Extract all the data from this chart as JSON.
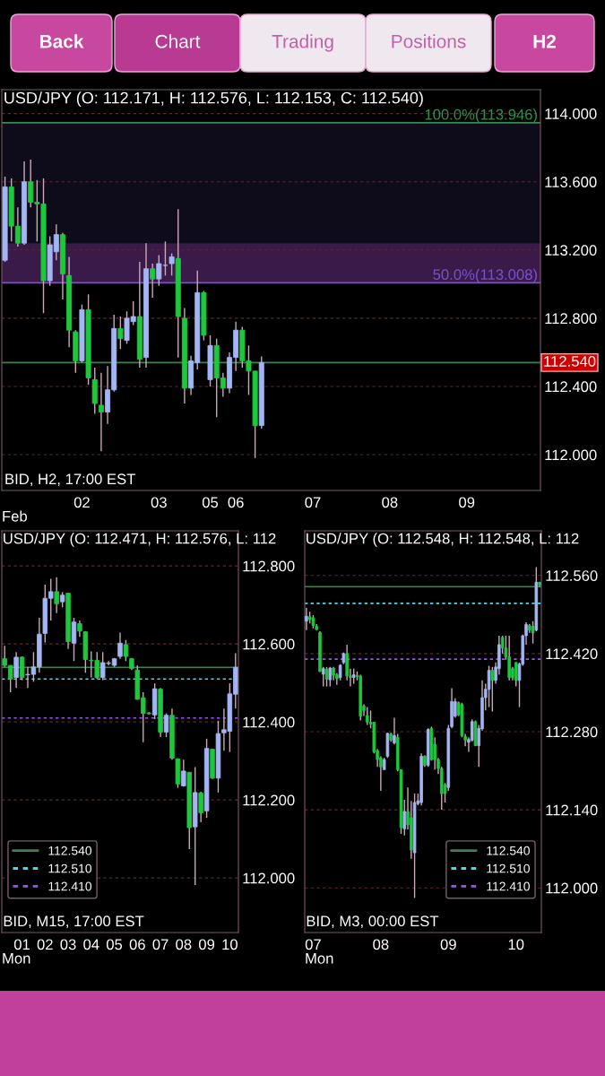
{
  "chart_data": [
    {
      "type": "other",
      "annotations": [
        "Back",
        "Chart",
        "Trading",
        "Positions",
        "H2"
      ]
    },
    {
      "type": "candlestick",
      "title": "USD/JPY (O: 112.171, H: 112.576, L: 112.153, C: 112.540)",
      "xlabel": "Feb",
      "categories": [
        null,
        null,
        null,
        null,
        null,
        null,
        null,
        null,
        null,
        null,
        null,
        null,
        "02",
        null,
        null,
        null,
        null,
        null,
        null,
        null,
        null,
        null,
        null,
        null,
        "03",
        null,
        null,
        null,
        null,
        null,
        null,
        null,
        "05",
        null,
        null,
        null,
        "06",
        null,
        null,
        null,
        null,
        null,
        null,
        null,
        null,
        null,
        null,
        null,
        "07",
        null,
        null,
        null,
        null,
        null,
        null,
        null,
        null,
        null,
        null,
        null,
        "08",
        null,
        null,
        null,
        null,
        null,
        null,
        null,
        null,
        null,
        null,
        null,
        "09",
        null,
        null,
        null,
        null,
        null,
        null,
        null,
        null,
        null,
        null,
        null
      ],
      "ohlc": [
        [
          113.14,
          113.63,
          113.13,
          113.57
        ],
        [
          113.57,
          113.62,
          113.25,
          113.34
        ],
        [
          113.34,
          113.45,
          113.22,
          113.24
        ],
        [
          113.24,
          113.72,
          113.23,
          113.6
        ],
        [
          113.6,
          113.73,
          113.45,
          113.48
        ],
        [
          113.48,
          113.61,
          113.25,
          113.47
        ],
        [
          113.47,
          113.62,
          112.83,
          113.02
        ],
        [
          113.02,
          113.28,
          112.99,
          113.23
        ],
        [
          113.19,
          113.35,
          113.14,
          113.29
        ],
        [
          113.29,
          113.3,
          112.91,
          113.06
        ],
        [
          113.05,
          113.16,
          112.63,
          112.73
        ],
        [
          112.72,
          112.73,
          112.48,
          112.55
        ],
        [
          112.55,
          112.88,
          112.54,
          112.85
        ],
        [
          112.85,
          112.94,
          112.41,
          112.45
        ],
        [
          112.44,
          112.51,
          112.24,
          112.3
        ],
        [
          112.29,
          112.48,
          112.02,
          112.25
        ],
        [
          112.25,
          112.52,
          112.18,
          112.38
        ],
        [
          112.38,
          112.82,
          112.37,
          112.74
        ],
        [
          112.74,
          112.81,
          112.62,
          112.68
        ],
        [
          112.67,
          112.84,
          112.65,
          112.8
        ],
        [
          112.78,
          112.9,
          112.76,
          112.81
        ],
        [
          112.81,
          113.13,
          112.51,
          112.56
        ],
        [
          112.57,
          113.24,
          112.51,
          113.09
        ],
        [
          113.09,
          113.12,
          112.92,
          113.03
        ],
        [
          113.03,
          113.17,
          112.99,
          113.12
        ],
        [
          113.11,
          113.25,
          113.05,
          113.11
        ],
        [
          113.12,
          113.18,
          113.05,
          113.16
        ],
        [
          113.15,
          113.44,
          112.57,
          112.81
        ],
        [
          112.8,
          112.86,
          112.3,
          112.39
        ],
        [
          112.39,
          112.58,
          112.35,
          112.55
        ],
        [
          112.54,
          113.08,
          112.5,
          112.95
        ],
        [
          112.95,
          112.96,
          112.67,
          112.7
        ],
        [
          112.44,
          112.7,
          112.4,
          112.64
        ],
        [
          112.64,
          112.68,
          112.22,
          112.45
        ],
        [
          112.45,
          112.48,
          112.34,
          112.39
        ],
        [
          112.39,
          112.6,
          112.36,
          112.57
        ],
        [
          112.57,
          112.78,
          112.49,
          112.73
        ],
        [
          112.73,
          112.75,
          112.51,
          112.55
        ],
        [
          112.55,
          112.64,
          112.35,
          112.49
        ],
        [
          112.49,
          112.49,
          111.98,
          112.17
        ],
        [
          112.171,
          112.576,
          112.153,
          112.54
        ],
        null,
        null,
        null,
        null,
        null,
        null,
        null,
        null,
        null,
        null,
        null,
        null,
        null,
        null,
        null,
        null,
        null,
        null,
        null,
        null,
        null,
        null,
        null,
        null,
        null,
        null,
        null,
        null,
        null,
        null,
        null,
        null,
        null,
        null,
        null,
        null,
        null,
        null,
        null,
        null,
        null,
        null,
        null
      ],
      "colors": [
        "#a3b5f2",
        "#1ec83c",
        "#1ec83c",
        "#a3b5f2",
        "#1ec83c",
        "#1ec83c",
        "#1ec83c",
        "#a3b5f2",
        "#a3b5f2",
        "#1ec83c",
        "#1ec83c",
        "#1ec83c",
        "#a3b5f2",
        "#1ec83c",
        "#1ec83c",
        "#1ec83c",
        "#a3b5f2",
        "#a3b5f2",
        "#1ec83c",
        "#a3b5f2",
        "#a3b5f2",
        "#1ec83c",
        "#a3b5f2",
        "#1ec83c",
        "#a3b5f2",
        "#a3b5f2",
        "#a3b5f2",
        "#1ec83c",
        "#1ec83c",
        "#a3b5f2",
        "#a3b5f2",
        "#1ec83c",
        "#a3b5f2",
        "#1ec83c",
        "#1ec83c",
        "#a3b5f2",
        "#a3b5f2",
        "#1ec83c",
        "#1ec83c",
        "#1ec83c",
        "#a3b5f2",
        null,
        null,
        null,
        null,
        null,
        null,
        null,
        null,
        null,
        null,
        null,
        null,
        null,
        null,
        null,
        null,
        null,
        null,
        null,
        null,
        null,
        null,
        null,
        null,
        null,
        null,
        null,
        null,
        null,
        null,
        null,
        null,
        null,
        null,
        null,
        null,
        null,
        null,
        null,
        null,
        null,
        null,
        null
      ],
      "ylim": [
        111.79,
        114.14
      ],
      "yticks": [
        {
          "value": 112,
          "label": "112.000"
        },
        {
          "value": 112.4,
          "label": "112.400"
        },
        {
          "value": 112.8,
          "label": "112.800"
        },
        {
          "value": 113.2,
          "label": "113.200"
        },
        {
          "value": 113.6,
          "label": "113.600"
        },
        {
          "value": 114,
          "label": "114.000"
        }
      ],
      "grid": "y",
      "bands": [
        {
          "axis": "y",
          "from": 113.24,
          "to": 113.946,
          "color": "#0e0c1a"
        },
        {
          "axis": "y",
          "from": 113.008,
          "to": 113.24,
          "color": "#3a1a48"
        }
      ],
      "ref_lines": [
        {
          "axis": "y",
          "value": 113.946,
          "color": "#2f8f4f",
          "line_style": "solid"
        },
        {
          "axis": "y",
          "value": 113.008,
          "color": "#7b4fd0",
          "line_style": "solid"
        },
        {
          "axis": "y",
          "value": 112.54,
          "label": "112.540",
          "color": "#3f7f52",
          "line_style": "solid"
        }
      ],
      "annotations": [
        {
          "text": "100.0%(113.946)",
          "y": 113.946
        },
        {
          "text": "50.0%(113.008)",
          "y": 113.008
        },
        "BID, H2, 17:00 EST"
      ]
    },
    {
      "type": "candlestick",
      "title": "USD/JPY (O: 112.471, H: 112.576, L: 112",
      "xlabel": "Mon",
      "categories": [
        null,
        null,
        null,
        "01",
        null,
        null,
        null,
        "02",
        null,
        null,
        null,
        "03",
        null,
        null,
        null,
        "04",
        null,
        null,
        null,
        "05",
        null,
        null,
        null,
        "06",
        null,
        null,
        null,
        "07",
        null,
        null,
        null,
        "08",
        null,
        null,
        null,
        "09",
        null,
        null,
        null,
        "10",
        null
      ],
      "ohlc": [
        [
          112.562,
          112.595,
          112.541,
          112.545
        ],
        [
          112.545,
          112.545,
          112.476,
          112.51
        ],
        [
          112.514,
          112.579,
          112.487,
          112.566
        ],
        [
          112.566,
          112.568,
          112.507,
          112.514
        ],
        [
          112.521,
          112.541,
          112.487,
          112.522
        ],
        [
          112.522,
          112.579,
          112.503,
          112.541
        ],
        [
          112.541,
          112.667,
          112.526,
          112.625
        ],
        [
          112.627,
          112.752,
          112.604,
          112.717
        ],
        [
          112.717,
          112.767,
          112.66,
          112.734
        ],
        [
          112.734,
          112.771,
          112.679,
          112.703
        ],
        [
          112.708,
          112.733,
          112.694,
          112.725
        ],
        [
          112.73,
          112.73,
          112.587,
          112.606
        ],
        [
          112.602,
          112.667,
          112.556,
          112.656
        ],
        [
          112.652,
          112.66,
          112.618,
          112.633
        ],
        [
          112.631,
          112.633,
          112.526,
          112.56
        ],
        [
          112.558,
          112.581,
          112.514,
          112.557
        ],
        [
          112.558,
          112.579,
          112.51,
          112.514
        ],
        [
          112.514,
          112.579,
          112.507,
          112.552
        ],
        [
          112.55,
          112.556,
          112.545,
          112.551
        ],
        [
          112.545,
          112.564,
          112.541,
          112.562
        ],
        [
          112.568,
          112.629,
          112.562,
          112.602
        ],
        [
          112.598,
          112.61,
          112.556,
          112.568
        ],
        [
          112.562,
          112.564,
          112.533,
          112.537
        ],
        [
          112.533,
          112.545,
          112.457,
          112.458
        ],
        [
          112.462,
          112.476,
          112.348,
          112.422
        ],
        [
          112.423,
          112.425,
          112.419,
          112.421
        ],
        [
          112.418,
          112.499,
          112.407,
          112.485
        ],
        [
          112.484,
          112.487,
          112.361,
          112.374
        ],
        [
          112.374,
          112.422,
          112.361,
          112.417
        ],
        [
          112.417,
          112.434,
          112.303,
          112.307
        ],
        [
          112.305,
          112.307,
          112.231,
          112.241
        ],
        [
          112.236,
          112.303,
          112.234,
          112.274
        ],
        [
          112.271,
          112.271,
          112.074,
          112.129
        ],
        [
          112.131,
          112.284,
          111.982,
          112.219
        ],
        [
          112.218,
          112.221,
          112.143,
          112.167
        ],
        [
          112.172,
          112.357,
          112.154,
          112.332
        ],
        [
          112.33,
          112.33,
          112.254,
          112.256
        ],
        [
          112.256,
          112.403,
          112.219,
          112.37
        ],
        [
          112.372,
          112.434,
          112.326,
          112.38
        ],
        [
          112.376,
          112.499,
          112.323,
          112.472
        ],
        [
          112.471,
          112.576,
          112.434,
          112.54
        ]
      ],
      "colors": [
        "#1ec83c",
        "#1ec83c",
        "#a3b5f2",
        "#1ec83c",
        "#a3b5f2",
        "#a3b5f2",
        "#a3b5f2",
        "#a3b5f2",
        "#a3b5f2",
        "#1ec83c",
        "#a3b5f2",
        "#1ec83c",
        "#a3b5f2",
        "#1ec83c",
        "#1ec83c",
        "#1ec83c",
        "#1ec83c",
        "#a3b5f2",
        "#a3b5f2",
        "#a3b5f2",
        "#a3b5f2",
        "#1ec83c",
        "#1ec83c",
        "#1ec83c",
        "#1ec83c",
        "#1ec83c",
        "#a3b5f2",
        "#1ec83c",
        "#a3b5f2",
        "#1ec83c",
        "#1ec83c",
        "#a3b5f2",
        "#1ec83c",
        "#a3b5f2",
        "#1ec83c",
        "#a3b5f2",
        "#1ec83c",
        "#a3b5f2",
        "#a3b5f2",
        "#a3b5f2",
        "#a3b5f2"
      ],
      "ylim": [
        111.86,
        112.89
      ],
      "yticks": [
        {
          "value": 112,
          "label": "112.000"
        },
        {
          "value": 112.2,
          "label": "112.200"
        },
        {
          "value": 112.4,
          "label": "112.400"
        },
        {
          "value": 112.6,
          "label": "112.600"
        },
        {
          "value": 112.8,
          "label": "112.800"
        }
      ],
      "grid": "y",
      "legend": "lower left",
      "ref_lines": [
        {
          "axis": "y",
          "value": 112.54,
          "label": "112.540",
          "color": "#3f7f52",
          "line_style": "solid"
        },
        {
          "axis": "y",
          "value": 112.51,
          "label": "112.510",
          "color": "#48d8e8",
          "line_style": "dotted"
        },
        {
          "axis": "y",
          "value": 112.41,
          "label": "112.410",
          "color": "#a050f0",
          "line_style": "dotted"
        }
      ],
      "annotations": [
        "BID, M15, 17:00 EST"
      ]
    },
    {
      "type": "candlestick",
      "title": "USD/JPY (O: 112.548, H: 112.548, L: 112",
      "xlabel": "Mon",
      "categories": [
        null,
        null,
        "07",
        null,
        null,
        null,
        null,
        null,
        null,
        null,
        null,
        null,
        null,
        null,
        null,
        null,
        null,
        null,
        null,
        null,
        null,
        null,
        "08",
        null,
        null,
        null,
        null,
        null,
        null,
        null,
        null,
        null,
        null,
        null,
        null,
        null,
        null,
        null,
        null,
        null,
        null,
        null,
        "09",
        null,
        null,
        null,
        null,
        null,
        null,
        null,
        null,
        null,
        null,
        null,
        null,
        null,
        null,
        null,
        null,
        null,
        null,
        null,
        "10",
        null,
        null,
        null,
        null,
        null,
        null,
        null
      ],
      "ohlc": [
        [
          112.478,
          112.502,
          112.462,
          112.487
        ],
        [
          112.486,
          112.495,
          112.474,
          112.481
        ],
        [
          112.484,
          112.489,
          112.465,
          112.47
        ],
        [
          112.469,
          112.473,
          112.462,
          112.463
        ],
        [
          112.458,
          112.46,
          112.387,
          112.388
        ],
        [
          112.383,
          112.396,
          112.361,
          112.393
        ],
        [
          112.392,
          112.396,
          112.361,
          112.374
        ],
        [
          112.373,
          112.396,
          112.361,
          112.394
        ],
        [
          112.394,
          112.396,
          112.372,
          112.381
        ],
        [
          112.382,
          112.385,
          112.364,
          112.375
        ],
        [
          112.377,
          112.401,
          112.372,
          112.399
        ],
        [
          112.404,
          112.422,
          112.401,
          112.42
        ],
        [
          112.42,
          112.436,
          112.372,
          112.38
        ],
        [
          112.38,
          112.393,
          112.361,
          112.377
        ],
        [
          112.377,
          112.393,
          112.366,
          112.382
        ],
        [
          112.381,
          112.388,
          112.372,
          112.379
        ],
        [
          112.38,
          112.382,
          112.3,
          112.308
        ],
        [
          112.326,
          112.329,
          112.308,
          112.318
        ],
        [
          112.309,
          112.324,
          112.292,
          112.297
        ],
        [
          112.297,
          112.318,
          112.286,
          112.294
        ],
        [
          112.297,
          112.297,
          112.241,
          112.244
        ],
        [
          112.246,
          112.249,
          112.217,
          112.23
        ],
        [
          112.233,
          112.236,
          112.174,
          112.217
        ],
        [
          112.212,
          112.233,
          112.212,
          112.23
        ],
        [
          112.236,
          112.278,
          112.233,
          112.277
        ],
        [
          112.276,
          112.278,
          112.262,
          112.265
        ],
        [
          112.26,
          112.305,
          112.257,
          112.273
        ],
        [
          112.27,
          112.276,
          112.209,
          112.212
        ],
        [
          112.212,
          112.212,
          112.097,
          112.108
        ],
        [
          112.106,
          112.158,
          112.094,
          112.137
        ],
        [
          112.137,
          112.18,
          112.105,
          112.113
        ],
        [
          112.126,
          112.156,
          112.052,
          112.068
        ],
        [
          112.063,
          112.169,
          111.982,
          112.153
        ],
        [
          112.151,
          112.169,
          112.148,
          112.156
        ],
        [
          112.153,
          112.241,
          112.148,
          112.236
        ],
        [
          112.236,
          112.238,
          112.217,
          112.22
        ],
        [
          112.22,
          112.286,
          112.217,
          112.284
        ],
        [
          112.286,
          112.289,
          112.228,
          112.23
        ],
        [
          112.257,
          112.27,
          112.212,
          112.23
        ],
        [
          112.23,
          112.233,
          112.204,
          112.214
        ],
        [
          112.214,
          112.217,
          112.14,
          112.169
        ],
        [
          112.185,
          112.188,
          112.153,
          112.169
        ],
        [
          112.18,
          112.292,
          112.174,
          112.286
        ],
        [
          112.289,
          112.358,
          112.286,
          112.334
        ],
        [
          112.308,
          112.34,
          112.305,
          112.334
        ],
        [
          112.332,
          112.334,
          112.308,
          112.31
        ],
        [
          112.329,
          112.332,
          112.27,
          112.273
        ],
        [
          112.271,
          112.276,
          112.254,
          112.265
        ],
        [
          112.261,
          112.27,
          112.244,
          112.266
        ],
        [
          112.265,
          112.302,
          112.262,
          112.298
        ],
        [
          112.298,
          112.3,
          112.254,
          112.255
        ],
        [
          112.255,
          112.292,
          112.217,
          112.286
        ],
        [
          112.285,
          112.372,
          112.282,
          112.341
        ],
        [
          112.341,
          112.366,
          112.318,
          112.356
        ],
        [
          112.356,
          112.398,
          112.324,
          112.39
        ],
        [
          112.39,
          112.396,
          112.316,
          112.372
        ],
        [
          112.372,
          112.404,
          112.366,
          112.396
        ],
        [
          112.393,
          112.452,
          112.382,
          112.436
        ],
        [
          112.449,
          112.452,
          112.42,
          112.43
        ],
        [
          112.43,
          112.452,
          112.409,
          112.414
        ],
        [
          112.414,
          112.452,
          112.372,
          112.377
        ],
        [
          112.393,
          112.396,
          112.372,
          112.377
        ],
        [
          112.404,
          112.404,
          112.361,
          112.372
        ],
        [
          112.372,
          112.404,
          112.324,
          112.401
        ],
        [
          112.401,
          112.454,
          112.398,
          112.452
        ],
        [
          112.452,
          112.476,
          112.436,
          112.472
        ],
        [
          112.47,
          112.473,
          112.457,
          112.462
        ],
        [
          112.469,
          112.478,
          112.438,
          112.457
        ],
        [
          112.462,
          112.575,
          112.46,
          112.548
        ],
        [
          112.548,
          112.548,
          112.54,
          112.543
        ]
      ],
      "colors": [
        "#a3b5f2",
        "#1ec83c",
        "#1ec83c",
        "#1ec83c",
        "#1ec83c",
        "#a3b5f2",
        "#1ec83c",
        "#a3b5f2",
        "#1ec83c",
        "#1ec83c",
        "#a3b5f2",
        "#a3b5f2",
        "#1ec83c",
        "#1ec83c",
        "#a3b5f2",
        "#1ec83c",
        "#1ec83c",
        "#1ec83c",
        "#1ec83c",
        "#1ec83c",
        "#1ec83c",
        "#1ec83c",
        "#1ec83c",
        "#a3b5f2",
        "#a3b5f2",
        "#1ec83c",
        "#a3b5f2",
        "#1ec83c",
        "#1ec83c",
        "#a3b5f2",
        "#1ec83c",
        "#1ec83c",
        "#a3b5f2",
        "#a3b5f2",
        "#a3b5f2",
        "#1ec83c",
        "#a3b5f2",
        "#1ec83c",
        "#1ec83c",
        "#1ec83c",
        "#1ec83c",
        "#1ec83c",
        "#a3b5f2",
        "#a3b5f2",
        "#a3b5f2",
        "#1ec83c",
        "#1ec83c",
        "#1ec83c",
        "#a3b5f2",
        "#a3b5f2",
        "#1ec83c",
        "#a3b5f2",
        "#a3b5f2",
        "#a3b5f2",
        "#a3b5f2",
        "#1ec83c",
        "#a3b5f2",
        "#a3b5f2",
        "#1ec83c",
        "#1ec83c",
        "#1ec83c",
        "#1ec83c",
        "#1ec83c",
        "#a3b5f2",
        "#a3b5f2",
        "#a3b5f2",
        "#1ec83c",
        "#1ec83c",
        "#a3b5f2",
        "#1ec83c"
      ],
      "ylim": [
        111.92,
        112.64
      ],
      "yticks": [
        {
          "value": 112,
          "label": "112.000"
        },
        {
          "value": 112.14,
          "label": "112.140"
        },
        {
          "value": 112.28,
          "label": "112.280"
        },
        {
          "value": 112.42,
          "label": "112.420"
        },
        {
          "value": 112.56,
          "label": "112.560"
        }
      ],
      "grid": "y",
      "legend": "lower right",
      "ref_lines": [
        {
          "axis": "y",
          "value": 112.54,
          "label": "112.540",
          "color": "#3f7f52",
          "line_style": "solid"
        },
        {
          "axis": "y",
          "value": 112.51,
          "label": "112.510",
          "color": "#48d8e8",
          "line_style": "dotted"
        },
        {
          "axis": "y",
          "value": 112.41,
          "label": "112.410",
          "color": "#a050f0",
          "line_style": "dotted"
        }
      ],
      "annotations": [
        "BID, M3, 00:00 EST"
      ]
    }
  ]
}
